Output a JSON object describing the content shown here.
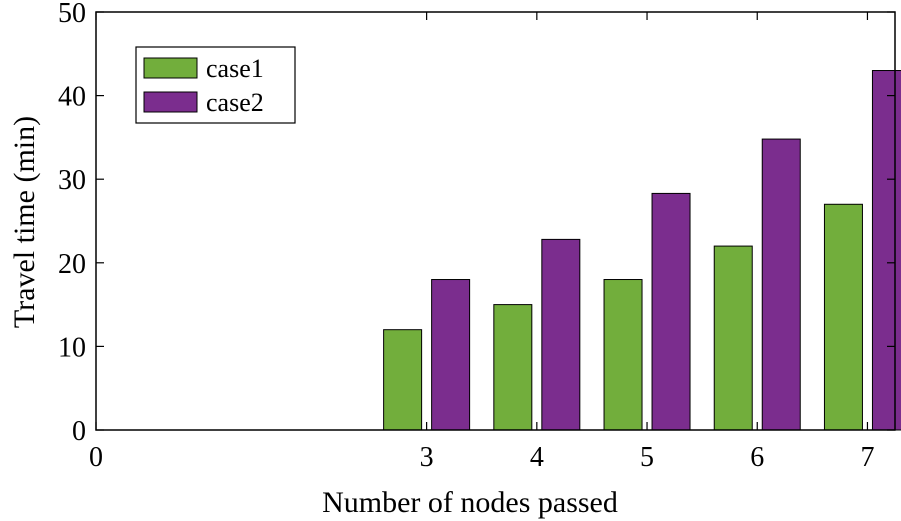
{
  "chart_data": {
    "type": "bar",
    "categories": [
      "3",
      "4",
      "5",
      "6",
      "7"
    ],
    "x": [
      3,
      4,
      5,
      6,
      7
    ],
    "series": [
      {
        "name": "case1",
        "color": "#72ae3c",
        "values": [
          12,
          15,
          18,
          22,
          27
        ]
      },
      {
        "name": "case2",
        "color": "#7b2d8e",
        "values": [
          18,
          22.8,
          28.3,
          34.8,
          43
        ]
      }
    ],
    "title": "",
    "xlabel": "Number of nodes passed",
    "ylabel": "Travel time (min)",
    "xlim": [
      0,
      7.25
    ],
    "ylim": [
      0,
      50
    ],
    "xticks": [
      0,
      3,
      4,
      5,
      6,
      7
    ],
    "yticks": [
      0,
      10,
      20,
      30,
      40,
      50
    ],
    "grid": false,
    "legend_position": "top-left"
  }
}
